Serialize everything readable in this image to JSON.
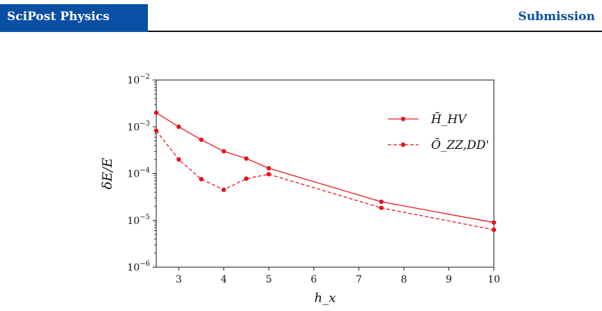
{
  "header": {
    "journal": "SciPost Physics",
    "status": "Submission"
  },
  "colors": {
    "brand": "#0a4fa3",
    "series": "#e8141c"
  },
  "chart_data": {
    "type": "line",
    "xlabel": "h_x",
    "ylabel": "δE/E",
    "xlim": [
      2.5,
      10
    ],
    "ylim": [
      1e-06,
      0.01
    ],
    "yscale": "log",
    "xticks": [
      "3",
      "4",
      "5",
      "6",
      "7",
      "8",
      "9",
      "10"
    ],
    "xtick_values": [
      3,
      4,
      5,
      6,
      7,
      8,
      9,
      10
    ],
    "ytick_exponents": [
      -6,
      -5,
      -4,
      -3,
      -2
    ],
    "legend_position": "top-right",
    "series": [
      {
        "name": "H̄_HV",
        "style": "solid",
        "x": [
          2.5,
          3.0,
          3.5,
          4.0,
          4.5,
          5.0,
          7.5,
          10.0
        ],
        "y": [
          0.002,
          0.001,
          0.00053,
          0.0003,
          0.00021,
          0.00013,
          2.5e-05,
          9e-06
        ]
      },
      {
        "name": "Ō_ZZ,DD'",
        "style": "dashed",
        "x": [
          2.5,
          3.0,
          3.5,
          4.0,
          4.5,
          5.0,
          7.5,
          10.0
        ],
        "y": [
          0.00082,
          0.0002,
          7.6e-05,
          4.5e-05,
          7.8e-05,
          9.7e-05,
          1.85e-05,
          6.3e-06
        ]
      }
    ]
  }
}
